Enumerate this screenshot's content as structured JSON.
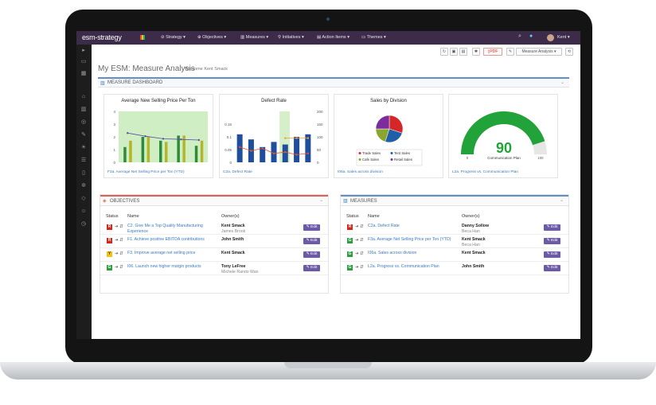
{
  "app": {
    "brand": "esm-strategy",
    "page_title": "My ESM: Measure Analysis",
    "welcome": "Welcome Kent Smack"
  },
  "nav": {
    "items": [
      "Strategy",
      "Objectives",
      "Measures",
      "Initiatives",
      "Action Items",
      "Themes"
    ],
    "user": "Kent"
  },
  "toolbar": {
    "pdf": "PDF",
    "view_select": "Measure Analysis"
  },
  "dashboard": {
    "header": "MEASURE DASHBOARD",
    "cards": [
      {
        "title": "Average New Selling Price Per Ton",
        "link": "F3a. Average Net Selling Price per Ton (YTD)"
      },
      {
        "title": "Defect Rate",
        "link": "C2a. Defect Rate"
      },
      {
        "title": "Sales by Division",
        "link": "I06a. Sales across division"
      },
      {
        "title": "",
        "link": "L2a. Progress vs. Communication Plan"
      }
    ]
  },
  "chart_data": [
    {
      "type": "bar",
      "title": "Average New Selling Price Per Ton",
      "categories": [
        "1",
        "2",
        "3",
        "4",
        "5"
      ],
      "series": [
        {
          "values": [
            1.2,
            2.0,
            1.7,
            2.1,
            1.3
          ]
        },
        {
          "values": [
            1.7,
            2.0,
            1.6,
            2.1,
            1.7
          ]
        }
      ],
      "line": [
        2.3,
        2.05,
        1.85,
        1.8,
        1.75
      ],
      "ylim": [
        0,
        4
      ],
      "yticks": [
        "4",
        "3",
        "2",
        "1",
        "0"
      ]
    },
    {
      "type": "bar",
      "title": "Defect Rate",
      "categories": [
        "1",
        "2",
        "3",
        "4",
        "5",
        "6",
        "7"
      ],
      "bars": [
        0.11,
        0.09,
        0.06,
        0.08,
        0.07,
        0.1,
        0.11
      ],
      "line": [
        60,
        45,
        55,
        35,
        40,
        30,
        35
      ],
      "line2": [
        null,
        null,
        null,
        null,
        95,
        95,
        95
      ],
      "ylim": [
        0,
        0.2
      ],
      "ylim2": [
        0,
        200
      ],
      "yticks": [
        "0.15",
        "0.1",
        "0.05",
        "0"
      ],
      "yticks2": [
        "200",
        "150",
        "100",
        "50",
        "0"
      ]
    },
    {
      "type": "pie",
      "title": "Sales by Division",
      "slices": [
        {
          "label": "Trade Sales",
          "value": 30,
          "color": "#d62728"
        },
        {
          "label": "Tent Sales",
          "value": 25,
          "color": "#1f5fa8"
        },
        {
          "label": "Cafe Sales",
          "value": 20,
          "color": "#8aa62e"
        },
        {
          "label": "Retail Sales",
          "value": 25,
          "color": "#7b2d9e"
        }
      ]
    },
    {
      "type": "gauge",
      "value": 90,
      "label": "Communication Plan",
      "min": "0",
      "max": "100"
    }
  ],
  "objectives": {
    "header": "OBJECTIVES",
    "cols": [
      "Status",
      "Name",
      "Owner(s)"
    ],
    "rows": [
      {
        "status": "R",
        "status_color": "#d9261c",
        "name": "C2. Give Me a Top Quality Manufacturing Experience",
        "owner1": "Kent Smack",
        "owner2": "James Brook",
        "edit": "Edit"
      },
      {
        "status": "R",
        "status_color": "#d9261c",
        "name": "F1. Achieve positive EBITDA contributions",
        "owner1": "John Smith",
        "owner2": "",
        "edit": "Edit"
      },
      {
        "status": "Y",
        "status_color": "#f1c40f",
        "name": "F3. Improve average net selling price",
        "owner1": "Kent Smack",
        "owner2": "",
        "edit": "Edit"
      },
      {
        "status": "G",
        "status_color": "#2e9e3f",
        "name": "I06. Launch new higher margin products",
        "owner1": "Tony LeFree",
        "owner2": "Michele Rando Wan",
        "edit": "Edit"
      }
    ]
  },
  "measures": {
    "header": "MEASURES",
    "cols": [
      "Status",
      "Name",
      "Owner(s)"
    ],
    "rows": [
      {
        "status": "R",
        "status_color": "#d9261c",
        "name": "C2a. Defect Rate",
        "owner1": "Danny Sollow",
        "owner2": "Beca Han",
        "edit": "Edit"
      },
      {
        "status": "G",
        "status_color": "#2e9e3f",
        "name": "F3a. Average Net Selling Price per Ton (YTD)",
        "owner1": "Kent Smack",
        "owner2": "Beca Han",
        "edit": "Edit"
      },
      {
        "status": "G",
        "status_color": "#2e9e3f",
        "name": "I06a. Sales across division",
        "owner1": "Kent Smack",
        "owner2": "",
        "edit": "Edit"
      },
      {
        "status": "G",
        "status_color": "#2e9e3f",
        "name": "L2a. Progress vs. Communication Plan",
        "owner1": "John Smith",
        "owner2": "",
        "edit": "Edit"
      }
    ]
  }
}
